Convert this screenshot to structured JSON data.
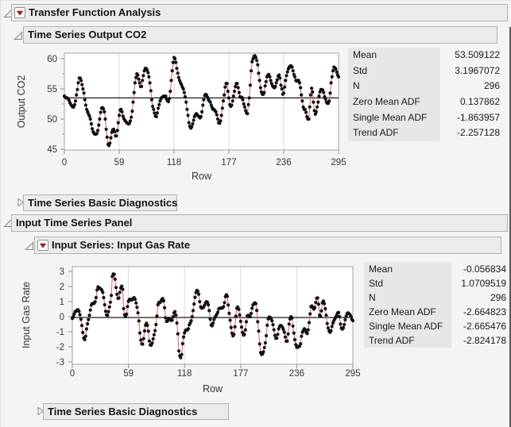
{
  "outline": {
    "root_title": "Transfer Function Analysis",
    "output_section_title": "Time Series Output CO2",
    "diagnostics_title": "Time Series Basic Diagnostics",
    "input_panel_title": "Input Time Series Panel",
    "input_series_title": "Input Series: Input Gas Rate",
    "diagnostics2_title": "Time Series Basic Diagnostics"
  },
  "colors": {
    "red_triangle": "#c41425",
    "series_line": "#e06262",
    "marker": "#111111",
    "header_bg": "#ebebeb",
    "header_border": "#b3b3b3",
    "stat_label_bg": "#e7e7e7",
    "plot_frame": "#a3a3a3",
    "gridline": "#d9d9d9",
    "page_bg": "#f4f4f5"
  },
  "output_stats": {
    "rows": [
      {
        "label": "Mean",
        "value": "53.509122"
      },
      {
        "label": "Std",
        "value": "3.1967072"
      },
      {
        "label": "N",
        "value": "296"
      },
      {
        "label": "Zero Mean ADF",
        "value": "0.137862"
      },
      {
        "label": "Single Mean ADF",
        "value": "-1.863957"
      },
      {
        "label": "Trend ADF",
        "value": "-2.257128"
      }
    ]
  },
  "input_stats": {
    "rows": [
      {
        "label": "Mean",
        "value": "-0.056834"
      },
      {
        "label": "Std",
        "value": "1.0709519"
      },
      {
        "label": "N",
        "value": "296"
      },
      {
        "label": "Zero Mean ADF",
        "value": "-2.664823"
      },
      {
        "label": "Single Mean ADF",
        "value": "-2.665476"
      },
      {
        "label": "Trend ADF",
        "value": "-2.824178"
      }
    ]
  },
  "chart_data": [
    {
      "type": "line",
      "series_name": "Output CO2",
      "xlabel": "Row",
      "ylabel": "Output CO2",
      "xlim": [
        0,
        295
      ],
      "xticks": [
        0,
        59,
        118,
        177,
        236,
        295
      ],
      "yticks": [
        45,
        50,
        55,
        60
      ],
      "yminor": [
        47.5,
        52.5,
        57.5
      ],
      "ylim": [
        44.5,
        61
      ],
      "mean_line": 53.509122,
      "legend": "none",
      "grid": "vertical-only",
      "values": [
        53.8,
        53.6,
        53.5,
        53.5,
        53.4,
        53.1,
        52.7,
        52.4,
        52.2,
        52.0,
        52.0,
        52.4,
        53.0,
        54.0,
        54.9,
        56.0,
        56.8,
        56.8,
        56.4,
        55.7,
        55.0,
        54.3,
        53.2,
        52.3,
        51.6,
        51.2,
        50.8,
        50.5,
        50.0,
        49.2,
        48.4,
        47.9,
        47.6,
        47.5,
        47.5,
        47.6,
        48.1,
        49.0,
        50.0,
        51.1,
        51.8,
        51.9,
        51.7,
        51.2,
        50.0,
        48.3,
        47.0,
        45.8,
        45.6,
        46.0,
        46.9,
        47.8,
        48.2,
        48.3,
        47.9,
        47.2,
        47.2,
        48.1,
        49.4,
        50.6,
        51.5,
        51.6,
        51.2,
        50.5,
        50.1,
        49.8,
        49.6,
        49.4,
        49.3,
        49.2,
        49.3,
        49.7,
        50.3,
        51.3,
        52.8,
        54.4,
        56.0,
        56.9,
        57.5,
        57.3,
        56.6,
        56.0,
        55.4,
        55.4,
        56.4,
        57.2,
        58.0,
        58.4,
        58.4,
        58.1,
        57.7,
        57.0,
        56.0,
        54.7,
        53.2,
        52.1,
        51.6,
        51.0,
        50.5,
        50.4,
        51.0,
        51.8,
        52.4,
        53.0,
        53.4,
        53.6,
        53.7,
        53.8,
        53.8,
        53.8,
        53.3,
        53.0,
        52.9,
        53.4,
        54.6,
        56.4,
        58.0,
        59.4,
        60.2,
        60.0,
        59.4,
        58.4,
        57.6,
        56.9,
        56.4,
        56.0,
        55.7,
        55.3,
        55.0,
        54.4,
        53.7,
        52.8,
        51.6,
        50.6,
        49.4,
        48.8,
        48.5,
        48.7,
        49.2,
        49.8,
        50.4,
        50.7,
        50.9,
        50.7,
        50.5,
        50.4,
        50.2,
        50.4,
        51.2,
        52.3,
        53.2,
        53.9,
        54.1,
        54.0,
        53.6,
        53.2,
        53.0,
        52.8,
        52.3,
        51.9,
        51.6,
        51.6,
        51.4,
        51.2,
        50.7,
        50.0,
        49.4,
        49.3,
        49.7,
        50.6,
        51.8,
        53.0,
        54.0,
        55.3,
        55.9,
        55.9,
        54.6,
        53.5,
        52.4,
        52.1,
        52.3,
        53.0,
        53.8,
        54.6,
        55.4,
        55.9,
        55.9,
        55.2,
        54.4,
        53.7,
        53.6,
        53.6,
        53.2,
        52.5,
        52.0,
        51.4,
        51.0,
        50.9,
        52.4,
        53.5,
        55.6,
        58.0,
        59.5,
        60.0,
        60.4,
        60.5,
        60.2,
        59.7,
        59.0,
        57.6,
        56.4,
        55.2,
        54.5,
        54.1,
        54.1,
        54.4,
        55.5,
        56.2,
        57.0,
        57.3,
        57.4,
        57.0,
        56.4,
        55.9,
        55.5,
        55.3,
        55.2,
        55.4,
        56.0,
        56.5,
        57.1,
        57.3,
        56.8,
        55.6,
        55.0,
        54.1,
        54.3,
        55.3,
        56.4,
        57.2,
        57.8,
        58.3,
        58.6,
        58.8,
        58.8,
        58.6,
        58.0,
        57.4,
        57.0,
        56.4,
        56.3,
        56.4,
        56.4,
        56.0,
        55.2,
        54.0,
        53.0,
        52.0,
        51.6,
        51.6,
        51.1,
        50.4,
        50.0,
        50.0,
        52.0,
        54.0,
        55.1,
        54.5,
        52.8,
        51.4,
        50.8,
        51.2,
        52.0,
        52.8,
        53.8,
        54.5,
        54.9,
        54.9,
        54.8,
        54.4,
        53.7,
        53.3,
        52.8,
        52.6,
        52.6,
        53.0,
        54.3,
        56.0,
        57.0,
        58.0,
        58.6,
        58.5,
        58.3,
        57.8,
        57.3,
        57.0
      ]
    },
    {
      "type": "line",
      "series_name": "Input Gas Rate",
      "xlabel": "Row",
      "ylabel": "Input Gas Rate",
      "xlim": [
        0,
        295
      ],
      "xticks": [
        0,
        59,
        118,
        177,
        236,
        295
      ],
      "yticks": [
        -3,
        -2,
        -1,
        0,
        1,
        2,
        3
      ],
      "yminor": [],
      "ylim": [
        -3.2,
        3.2
      ],
      "mean_line": -0.056834,
      "legend": "none",
      "grid": "vertical-only",
      "values": [
        -0.109,
        0.0,
        0.178,
        0.339,
        0.373,
        0.441,
        0.461,
        0.348,
        0.127,
        -0.18,
        -0.588,
        -1.055,
        -1.421,
        -1.52,
        -1.302,
        -0.814,
        -0.475,
        -0.193,
        0.088,
        0.435,
        0.771,
        0.866,
        0.875,
        0.891,
        0.987,
        1.263,
        1.775,
        1.976,
        1.934,
        1.866,
        1.832,
        1.767,
        1.608,
        1.265,
        0.79,
        0.36,
        0.115,
        0.088,
        0.331,
        0.645,
        0.96,
        1.409,
        2.67,
        2.834,
        2.812,
        2.483,
        1.929,
        1.485,
        1.214,
        1.239,
        1.608,
        1.905,
        2.023,
        1.815,
        0.535,
        0.122,
        0.009,
        0.164,
        0.671,
        1.019,
        1.146,
        1.155,
        1.112,
        1.121,
        1.223,
        1.257,
        1.157,
        0.913,
        0.62,
        0.255,
        -0.28,
        -1.08,
        -1.551,
        -1.799,
        -1.825,
        -1.456,
        -0.944,
        -0.57,
        -0.431,
        -0.577,
        -0.96,
        -1.616,
        -1.875,
        -1.891,
        -1.746,
        -1.474,
        -1.201,
        -0.927,
        -0.524,
        0.04,
        0.788,
        0.943,
        0.93,
        1.006,
        1.137,
        1.198,
        1.054,
        0.595,
        -0.08,
        -0.314,
        -0.288,
        -0.153,
        -0.109,
        -0.187,
        -0.255,
        -0.229,
        -0.007,
        0.254,
        0.33,
        0.102,
        -0.423,
        -1.139,
        -2.275,
        -2.594,
        -2.716,
        -2.51,
        -1.79,
        -1.346,
        -1.081,
        -0.91,
        -0.876,
        -0.885,
        -0.8,
        -0.544,
        -0.416,
        -0.271,
        0.0,
        0.403,
        0.841,
        1.285,
        1.607,
        1.746,
        1.683,
        1.485,
        0.993,
        0.648,
        0.577,
        0.577,
        0.632,
        0.747,
        0.9,
        0.993,
        0.968,
        0.79,
        0.399,
        -0.161,
        -0.553,
        -0.603,
        -0.424,
        -0.194,
        -0.049,
        0.06,
        0.161,
        0.301,
        0.517,
        0.566,
        0.56,
        0.573,
        0.592,
        0.671,
        0.933,
        1.337,
        1.46,
        1.353,
        0.772,
        0.218,
        -0.237,
        -0.714,
        -1.099,
        -1.269,
        -1.175,
        -0.676,
        0.033,
        0.556,
        0.643,
        0.484,
        0.109,
        -0.31,
        -0.697,
        -1.047,
        -1.218,
        -1.183,
        -0.873,
        -0.336,
        0.063,
        0.084,
        0.0,
        0.001,
        0.209,
        0.556,
        0.782,
        0.858,
        0.918,
        0.862,
        0.416,
        -0.336,
        -0.959,
        -1.813,
        -2.378,
        -2.499,
        -2.473,
        -2.33,
        -2.053,
        -1.739,
        -1.261,
        -0.569,
        -0.137,
        -0.024,
        -0.05,
        -0.135,
        -0.276,
        -0.534,
        -0.871,
        -1.243,
        -1.439,
        -1.422,
        -1.175,
        -0.813,
        -0.634,
        -0.582,
        -0.625,
        -0.713,
        -0.848,
        -1.039,
        -1.346,
        -1.628,
        -1.619,
        -1.149,
        -0.488,
        -0.16,
        -0.007,
        -0.092,
        -0.62,
        -1.086,
        -1.525,
        -1.858,
        -2.029,
        -2.024,
        -1.961,
        -1.952,
        -1.794,
        -1.302,
        -1.03,
        -0.918,
        -0.798,
        -0.867,
        -1.047,
        -1.123,
        -0.876,
        -0.395,
        0.185,
        0.662,
        0.709,
        0.605,
        0.501,
        0.603,
        0.943,
        1.223,
        1.249,
        0.824,
        0.102,
        0.025,
        0.382,
        0.922,
        1.032,
        0.866,
        0.527,
        0.093,
        -0.458,
        -0.748,
        -0.947,
        -1.029,
        -0.928,
        -0.645,
        -0.424,
        -0.276,
        -0.158,
        -0.033,
        0.102,
        0.251,
        0.28,
        0.0,
        -0.493,
        -0.759,
        -0.824,
        -0.74,
        -0.528,
        -0.204,
        0.034,
        0.204,
        0.253,
        0.195,
        0.131,
        0.017,
        -0.182,
        -0.262
      ]
    }
  ]
}
